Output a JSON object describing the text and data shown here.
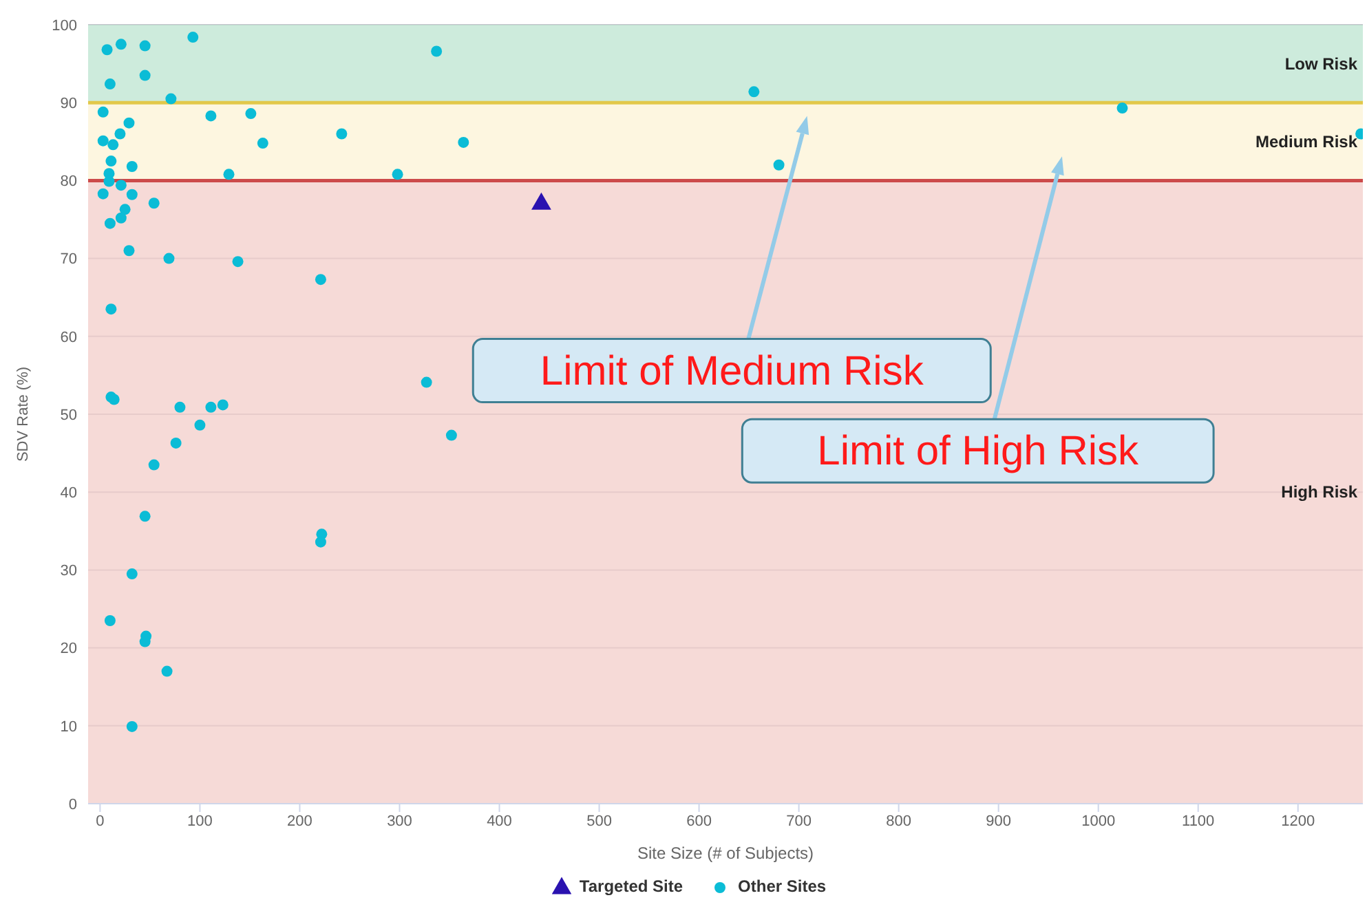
{
  "chart_data": {
    "type": "scatter",
    "xlabel": "Site Size (# of Subjects)",
    "ylabel": "SDV Rate (%)",
    "xlim": [
      -12,
      1265
    ],
    "xticks": [
      0,
      100,
      200,
      300,
      400,
      500,
      600,
      700,
      800,
      900,
      1000,
      1100,
      1200
    ],
    "ylim": [
      0,
      100
    ],
    "yticks": [
      0,
      10,
      20,
      30,
      40,
      50,
      60,
      70,
      80,
      90,
      100
    ],
    "grid": "y",
    "legend": "bottom",
    "series": [
      {
        "name": "Targeted Site",
        "color": "#2a12b0",
        "marker": "triangle",
        "x": [
          442
        ],
        "values": [
          77.1
        ]
      },
      {
        "name": "Other Sites",
        "color": "#0bbcd6",
        "marker": "circle",
        "x": [
          3,
          29,
          3,
          13,
          20,
          11,
          32,
          9,
          9,
          21,
          32,
          3,
          54,
          25,
          21,
          10,
          29,
          69,
          138,
          221,
          11,
          11,
          14,
          80,
          111,
          123,
          100,
          327,
          111,
          151,
          163,
          242,
          364,
          129,
          298,
          337,
          93,
          7,
          21,
          45,
          10,
          45,
          71,
          76,
          54,
          352,
          45,
          222,
          221,
          32,
          10,
          46,
          45,
          67,
          32,
          655,
          680,
          1024,
          1263
        ],
        "values": [
          88.8,
          87.4,
          85.1,
          84.6,
          86.0,
          82.5,
          81.8,
          80.9,
          79.9,
          79.4,
          78.2,
          78.3,
          77.1,
          76.3,
          75.2,
          74.5,
          71.0,
          70.0,
          69.6,
          67.3,
          63.5,
          52.2,
          51.9,
          50.9,
          50.9,
          51.2,
          48.6,
          54.1,
          88.3,
          88.6,
          84.8,
          86.0,
          84.9,
          80.8,
          80.8,
          96.6,
          98.4,
          96.8,
          97.5,
          97.3,
          92.4,
          93.5,
          90.5,
          46.3,
          43.5,
          47.3,
          36.9,
          34.6,
          33.6,
          29.5,
          23.5,
          21.5,
          20.8,
          17.0,
          9.9,
          91.4,
          82.0,
          89.3,
          86.0
        ]
      }
    ],
    "bands": [
      {
        "axis": "y",
        "from": 90,
        "to": 100,
        "label": "Low Risk",
        "color": "#cdebdc"
      },
      {
        "axis": "y",
        "from": 80,
        "to": 90,
        "label": "Medium Risk",
        "color": "#fdf6e0"
      },
      {
        "axis": "y",
        "from": 0,
        "to": 80,
        "label": "High Risk",
        "color": "#f6dad7"
      }
    ],
    "ref_lines": [
      {
        "axis": "y",
        "value": 90,
        "label": null,
        "color": "#e2c84a"
      },
      {
        "axis": "y",
        "value": 80,
        "label": null,
        "color": "#cc4a4a"
      }
    ],
    "annotations": [
      "Limit of Medium Risk",
      "Limit of High Risk"
    ]
  }
}
